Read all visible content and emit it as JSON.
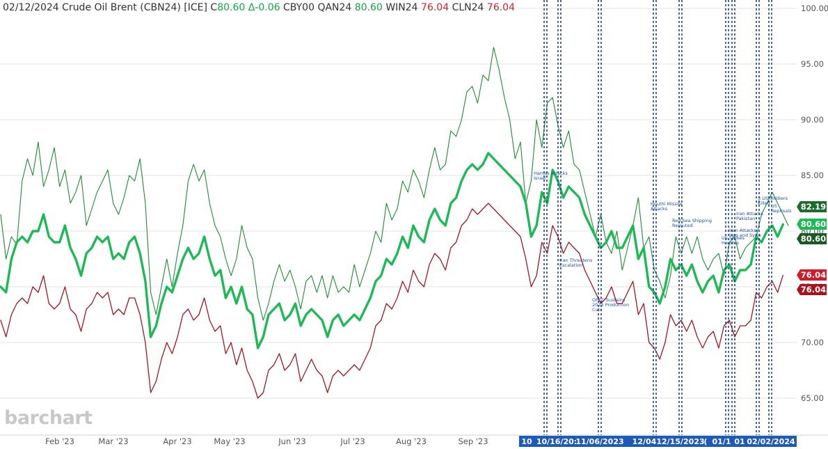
{
  "header": {
    "date": "02/12/2024",
    "title": "Crude Oil Brent (CBN24) [ICE]",
    "close_label": "C",
    "close_value": "80.60",
    "change": "Δ-0.06",
    "symbols": [
      {
        "name": "CBY00",
        "value": "",
        "color": "dark"
      },
      {
        "name": "QAN24",
        "value": "80.60",
        "color": "green"
      },
      {
        "name": "WIN24",
        "value": "76.04",
        "color": "red"
      },
      {
        "name": "CLN24",
        "value": "76.04",
        "color": "red"
      }
    ]
  },
  "watermark": "barchart",
  "colors": {
    "thin_green": "#1f8b32",
    "bold_green": "#1db954",
    "red": "#a5151f",
    "event_blue": "#1b3f8e",
    "axis_box": "#1e5bb8"
  },
  "chart_data": {
    "type": "line",
    "ylim": [
      62,
      101
    ],
    "y_ticks": [
      "100.00",
      "95.00",
      "90.00",
      "85.00",
      "80.00",
      "75.00",
      "70.00",
      "65.00"
    ],
    "x_ticks": [
      "Feb '23",
      "Mar '23",
      "Apr '23",
      "May '23",
      "Jun '23",
      "Jul '23",
      "Aug '23",
      "Sep '23"
    ],
    "x_date_boxes": [
      "10",
      "10/16/20:",
      "11/06/2023",
      "12/04",
      "12/15/2023",
      "(",
      "01/1",
      "01",
      "02/02/2024"
    ],
    "series": [
      {
        "name": "CBY00",
        "values": [
          81.5,
          77.5,
          79.5,
          78.8,
          84.5,
          86.5,
          85.0,
          88.0,
          84.0,
          85.5,
          87.5,
          84.0,
          85.5,
          82.5,
          83.5,
          85.0,
          80.5,
          82.0,
          83.5,
          84.5,
          85.5,
          82.5,
          81.5,
          83.0,
          85.0,
          84.5,
          86.5,
          82.5,
          74.5,
          72.5,
          75.0,
          77.5,
          75.0,
          78.0,
          80.5,
          84.5,
          86.0,
          84.5,
          85.5,
          82.5,
          80.5,
          79.5,
          77.5,
          76.0,
          77.5,
          80.5,
          78.5,
          77.5,
          74.0,
          72.0,
          73.5,
          75.5,
          77.0,
          75.5,
          76.5,
          75.0,
          73.0,
          75.5,
          76.0,
          74.5,
          76.0,
          74.0,
          76.0,
          74.5,
          75.0,
          74.5,
          77.0,
          75.0,
          76.5,
          78.0,
          80.0,
          79.0,
          82.5,
          81.0,
          82.0,
          84.5,
          83.5,
          85.5,
          84.5,
          83.0,
          85.5,
          87.5,
          85.5,
          86.0,
          89.0,
          88.5,
          90.0,
          92.5,
          93.0,
          91.5,
          94.0,
          93.5,
          96.5,
          94.5,
          92.0,
          90.0,
          86.5,
          88.0,
          82.5,
          84.5,
          90.0,
          87.5,
          91.5,
          92.0,
          89.5,
          87.5,
          89.0,
          86.0,
          85.5,
          83.5,
          81.5,
          79.5,
          81.5,
          79.0,
          78.0,
          80.0,
          76.5,
          78.5,
          80.5,
          83.0,
          78.5,
          79.5,
          76.5,
          75.5,
          74.0,
          76.0,
          79.5,
          78.0,
          79.5,
          78.0,
          79.5,
          77.5,
          76.5,
          77.5,
          78.0,
          76.0,
          79.0,
          79.5,
          77.5,
          78.5,
          79.0,
          79.5,
          81.5,
          82.5,
          83.5,
          82.5,
          81.5,
          80.5
        ]
      },
      {
        "name": "QAN24",
        "values": [
          75.0,
          74.5,
          77.5,
          79.0,
          79.5,
          79.0,
          80.0,
          80.0,
          81.5,
          79.5,
          79.0,
          79.0,
          80.5,
          78.5,
          77.5,
          76.0,
          78.0,
          78.5,
          79.5,
          79.0,
          79.5,
          77.5,
          78.0,
          77.5,
          79.0,
          79.5,
          78.0,
          75.5,
          70.5,
          71.5,
          73.5,
          75.0,
          74.5,
          76.0,
          77.5,
          78.5,
          77.5,
          78.0,
          79.5,
          77.5,
          76.0,
          76.5,
          74.0,
          75.0,
          73.5,
          75.0,
          73.0,
          72.5,
          69.5,
          70.5,
          72.5,
          73.0,
          73.5,
          72.0,
          72.5,
          73.5,
          71.5,
          72.5,
          73.0,
          72.5,
          72.0,
          70.5,
          72.0,
          72.5,
          71.5,
          72.0,
          72.5,
          72.0,
          73.0,
          74.0,
          75.5,
          76.0,
          77.5,
          77.0,
          78.0,
          79.5,
          78.5,
          80.5,
          79.5,
          79.0,
          81.0,
          82.0,
          81.0,
          80.5,
          82.5,
          83.0,
          84.5,
          85.5,
          86.0,
          85.5,
          86.0,
          87.0,
          86.5,
          86.0,
          85.5,
          85.0,
          84.5,
          84.0,
          82.5,
          79.5,
          80.5,
          83.5,
          82.5,
          85.5,
          84.5,
          83.0,
          84.0,
          83.5,
          83.0,
          81.5,
          80.5,
          79.5,
          78.5,
          79.0,
          80.0,
          78.5,
          78.5,
          79.5,
          80.5,
          77.5,
          78.5,
          75.0,
          74.5,
          73.5,
          75.0,
          77.5,
          76.5,
          77.0,
          76.0,
          77.0,
          75.5,
          74.5,
          75.5,
          76.0,
          74.5,
          76.5,
          77.0,
          75.5,
          76.5,
          76.5,
          77.0,
          79.5,
          79.0,
          80.0,
          80.5,
          79.5,
          80.6
        ]
      },
      {
        "name": "CLN24",
        "values": [
          72.0,
          70.5,
          72.5,
          73.5,
          74.0,
          73.5,
          75.0,
          74.5,
          76.0,
          73.5,
          73.0,
          73.5,
          75.0,
          73.0,
          72.5,
          71.0,
          73.0,
          73.5,
          74.5,
          74.0,
          74.5,
          72.5,
          73.0,
          72.5,
          74.0,
          74.0,
          72.5,
          70.0,
          65.5,
          66.5,
          68.5,
          70.0,
          69.0,
          70.5,
          72.5,
          73.0,
          72.0,
          72.5,
          74.0,
          72.0,
          71.0,
          71.5,
          69.0,
          70.0,
          68.0,
          69.5,
          67.5,
          66.5,
          65.0,
          65.5,
          67.5,
          68.0,
          69.0,
          67.5,
          68.0,
          69.0,
          66.5,
          67.5,
          68.5,
          67.5,
          67.0,
          65.5,
          67.0,
          67.5,
          67.0,
          67.5,
          68.0,
          67.5,
          68.5,
          69.5,
          71.5,
          72.0,
          73.5,
          73.0,
          74.0,
          75.5,
          74.5,
          76.5,
          75.5,
          75.0,
          77.0,
          78.0,
          77.5,
          76.5,
          78.5,
          79.0,
          80.5,
          81.0,
          82.0,
          81.5,
          82.0,
          82.5,
          82.0,
          81.5,
          81.0,
          80.5,
          80.0,
          79.5,
          77.5,
          75.0,
          76.0,
          79.0,
          78.0,
          80.5,
          79.5,
          78.0,
          79.0,
          78.5,
          78.0,
          76.5,
          75.5,
          74.5,
          73.5,
          74.0,
          75.0,
          73.5,
          73.5,
          74.5,
          75.5,
          72.5,
          73.5,
          70.0,
          69.5,
          68.5,
          70.0,
          72.5,
          71.5,
          72.0,
          71.0,
          72.0,
          70.5,
          69.5,
          70.5,
          71.0,
          69.5,
          71.5,
          72.0,
          70.5,
          71.5,
          71.5,
          72.0,
          74.5,
          74.0,
          75.0,
          75.5,
          74.5,
          76.04
        ]
      }
    ],
    "price_labels": [
      {
        "value": "82.19",
        "color": "#1e6b2e"
      },
      {
        "value": "80.60",
        "color": "#1db954"
      },
      {
        "value": "80.60",
        "color": "#1a5a22"
      },
      {
        "value": "76.04",
        "color": "#d01c2a"
      },
      {
        "value": "76.04",
        "color": "#a5151f"
      }
    ],
    "events": [
      {
        "lines": [
          "Hamas Attacks",
          "Israel"
        ]
      },
      {
        "lines": [
          "Iran Threatens",
          "Escalation"
        ]
      },
      {
        "lines": [
          "OPEC Sustains",
          "2023 Production",
          "Cuts"
        ]
      },
      {
        "lines": [
          "Houthi Missile",
          "Attacks"
        ]
      },
      {
        "lines": [
          "Red Sea Shipping",
          "Rerouted"
        ]
      },
      {
        "lines": [
          "US Strikes",
          "Houthis"
        ]
      },
      {
        "lines": [
          "Iran Attacks",
          "Iraq and Syria"
        ]
      },
      {
        "lines": [
          "Iran Attacks",
          "Pakistan"
        ]
      },
      {
        "lines": [
          "3 US Soldiers",
          "Killed"
        ]
      },
      {
        "lines": [
          "US",
          "Reprisals"
        ]
      }
    ]
  }
}
